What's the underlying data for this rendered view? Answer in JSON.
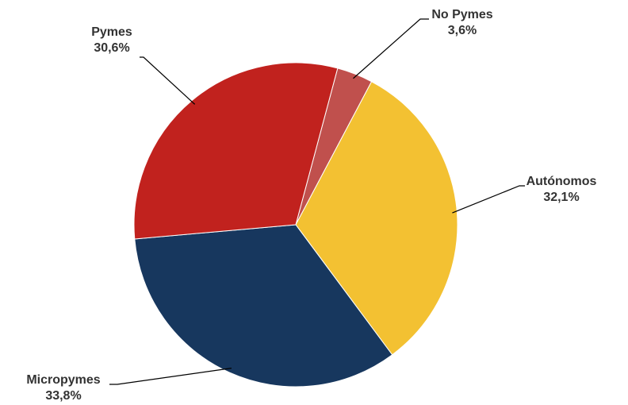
{
  "chart_data": {
    "type": "pie",
    "title": "",
    "start_angle_deg": 15,
    "direction": "clockwise",
    "legend": "none",
    "slices": [
      {
        "name": "No Pymes",
        "value": 3.6,
        "label": "3,6%",
        "color": "#C0504D"
      },
      {
        "name": "Autónomos",
        "value": 32.1,
        "label": "32,1%",
        "color": "#F3C132"
      },
      {
        "name": "Micropymes",
        "value": 33.8,
        "label": "33,8%",
        "color": "#17375E"
      },
      {
        "name": "Pymes",
        "value": 30.6,
        "label": "30,6%",
        "color": "#C1221E"
      }
    ]
  }
}
